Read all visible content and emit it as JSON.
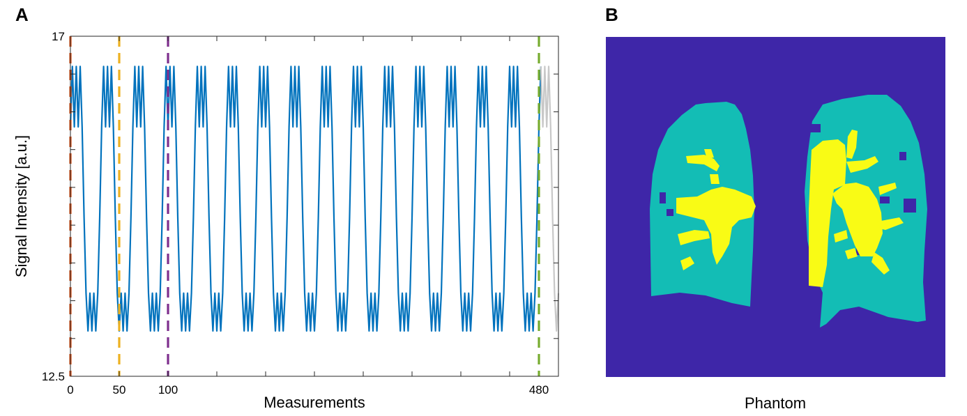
{
  "panel_a": {
    "letter": "A"
  },
  "panel_b": {
    "letter": "B",
    "caption": "Phantom"
  },
  "colors": {
    "signal": "#0072BD",
    "signal_tail": "#c8c8c8",
    "marker_0": "#D95319",
    "marker_50": "#EDB120",
    "marker_100": "#7E2F8E",
    "marker_480": "#77AC30",
    "phantom_background": "#3e26a8",
    "phantom_lung": "#13bdb5",
    "phantom_vessel": "#f9fb15"
  },
  "chart_data": {
    "type": "line",
    "xlabel": "Measurements",
    "ylabel": "Signal Intensity [a.u.]",
    "xlim": [
      0,
      500
    ],
    "ylim": [
      12.5,
      17
    ],
    "x_tick_labels": [
      {
        "x": 0,
        "label": "0"
      },
      {
        "x": 50,
        "label": "50"
      },
      {
        "x": 100,
        "label": "100"
      },
      {
        "x": 480,
        "label": "480"
      }
    ],
    "y_tick_labels": [
      {
        "y": 17,
        "label": "17"
      },
      {
        "y": 12.5,
        "label": "12.5"
      }
    ],
    "period": 32,
    "cycle_pattern": [
      15.8,
      16.6,
      15.8,
      16.6,
      15.8,
      16.6,
      15.8,
      14.6,
      13.6,
      13.1,
      13.6,
      13.1,
      13.6,
      13.1,
      13.6,
      14.6
    ],
    "signal_range_x": [
      0,
      482
    ],
    "tail_range_x": [
      482,
      500
    ],
    "vertical_markers": [
      {
        "x": 0,
        "name": "marker-0"
      },
      {
        "x": 50,
        "name": "marker-50"
      },
      {
        "x": 100,
        "name": "marker-100"
      },
      {
        "x": 480,
        "name": "marker-480"
      }
    ]
  }
}
